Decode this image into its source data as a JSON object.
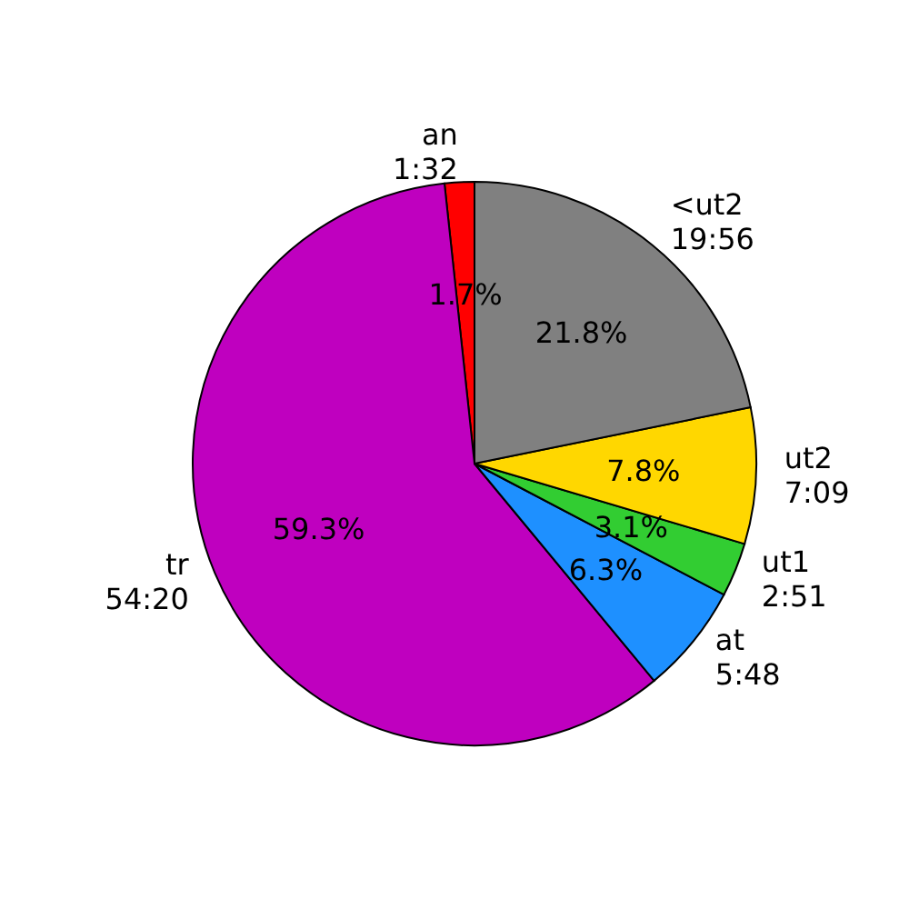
{
  "chart_data": {
    "type": "pie",
    "categories": [
      "an\n1:32",
      "tr\n54:20",
      "at\n5:48",
      "ut1\n2:51",
      "ut2\n7:09",
      "<ut2\n19:56"
    ],
    "values": [
      1.7,
      59.3,
      6.3,
      3.1,
      7.8,
      21.8
    ],
    "value_labels": [
      "1.7%",
      "59.3%",
      "6.3%",
      "3.1%",
      "7.8%",
      "21.8%"
    ],
    "colors": [
      "#ff0000",
      "#bf00bf",
      "#1e90ff",
      "#32cd32",
      "#ffd700",
      "#808080"
    ]
  }
}
